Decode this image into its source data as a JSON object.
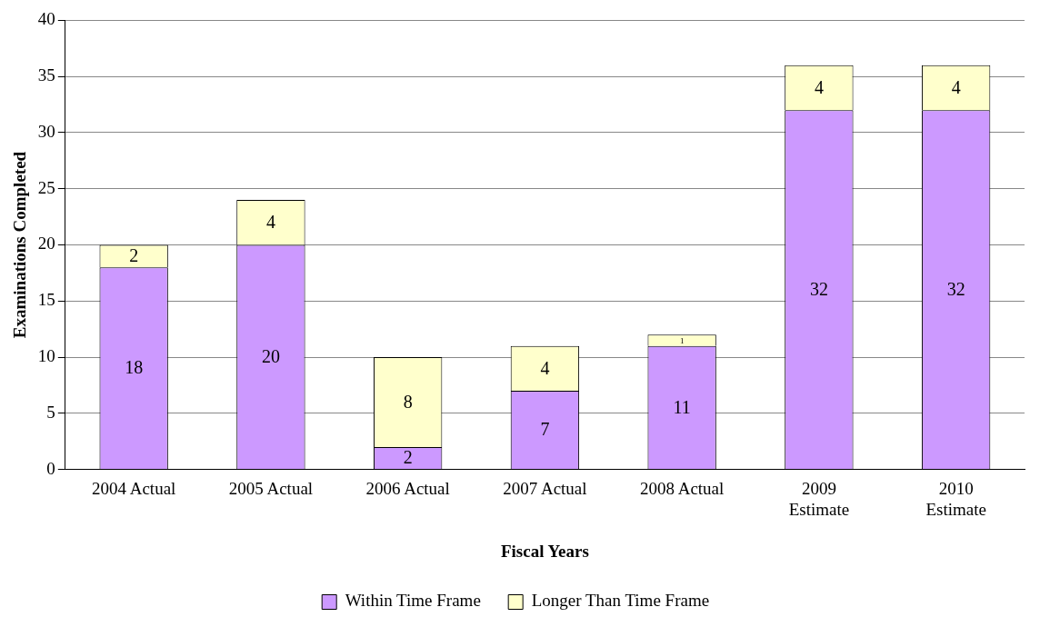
{
  "chart_data": {
    "type": "bar",
    "stacked": true,
    "xlabel": "Fiscal Years",
    "ylabel": "Examinations Completed",
    "categories": [
      "2004 Actual",
      "2005 Actual",
      "2006 Actual",
      "2007 Actual",
      "2008 Actual",
      "2009 Estimate",
      "2010 Estimate"
    ],
    "series": [
      {
        "name": "Within Time Frame",
        "color": "#cc99ff",
        "values": [
          18,
          20,
          2,
          7,
          11,
          32,
          32
        ]
      },
      {
        "name": "Longer Than Time Frame",
        "color": "#ffffcc",
        "values": [
          2,
          4,
          8,
          4,
          1,
          4,
          4
        ]
      }
    ],
    "ylim": [
      0,
      40
    ],
    "yticks": [
      0,
      5,
      10,
      15,
      20,
      25,
      30,
      35,
      40
    ],
    "grid": "y",
    "legend": "bottom",
    "data_labels": true
  }
}
